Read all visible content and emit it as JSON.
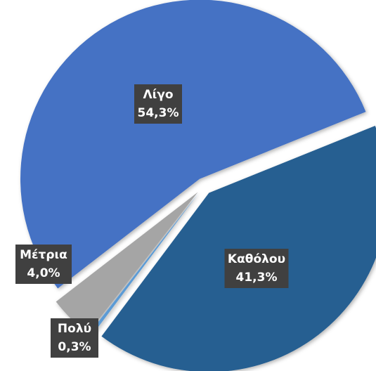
{
  "chart_data": {
    "type": "pie",
    "categories": [
      "Καθόλου",
      "Πολύ",
      "Μέτρια",
      "Λίγο"
    ],
    "values": [
      41.3,
      0.3,
      4.0,
      54.3
    ],
    "value_labels": [
      "41,3%",
      "0,3%",
      "4,0%",
      "54,3%"
    ],
    "colors": [
      "#255e91",
      "#5b9bd5",
      "#a5a5a5",
      "#4472c4"
    ]
  }
}
